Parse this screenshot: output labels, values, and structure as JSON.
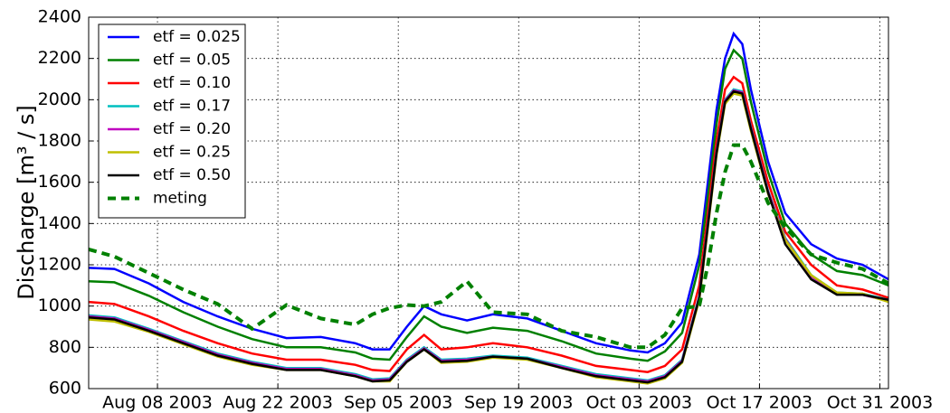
{
  "chart_data": {
    "type": "line",
    "y_label": "Discharge [m³ / s]",
    "x": [
      "2003-07-31",
      "2003-08-03",
      "2003-08-07",
      "2003-08-11",
      "2003-08-15",
      "2003-08-19",
      "2003-08-23",
      "2003-08-27",
      "2003-08-31",
      "2003-09-02",
      "2003-09-04",
      "2003-09-06",
      "2003-09-08",
      "2003-09-10",
      "2003-09-13",
      "2003-09-16",
      "2003-09-20",
      "2003-09-24",
      "2003-09-28",
      "2003-10-02",
      "2003-10-04",
      "2003-10-06",
      "2003-10-08",
      "2003-10-10",
      "2003-10-11",
      "2003-10-12",
      "2003-10-13",
      "2003-10-14",
      "2003-10-15",
      "2003-10-16",
      "2003-10-18",
      "2003-10-20",
      "2003-10-23",
      "2003-10-26",
      "2003-10-29",
      "2003-11-01"
    ],
    "series": [
      {
        "name": "etf = 0.025",
        "color": "#0000ff",
        "linestyle": "solid",
        "values": [
          1185,
          1180,
          1110,
          1020,
          950,
          890,
          845,
          850,
          820,
          790,
          790,
          900,
          1000,
          960,
          930,
          960,
          940,
          880,
          820,
          785,
          775,
          820,
          920,
          1250,
          1600,
          1950,
          2200,
          2320,
          2270,
          2050,
          1700,
          1450,
          1300,
          1230,
          1200,
          1130
        ]
      },
      {
        "name": "etf = 0.05",
        "color": "#008000",
        "linestyle": "solid",
        "values": [
          1120,
          1115,
          1050,
          970,
          900,
          840,
          800,
          800,
          775,
          745,
          740,
          850,
          950,
          900,
          870,
          895,
          880,
          830,
          770,
          745,
          735,
          780,
          870,
          1200,
          1530,
          1880,
          2150,
          2240,
          2200,
          1990,
          1650,
          1400,
          1250,
          1170,
          1150,
          1100
        ]
      },
      {
        "name": "etf = 0.10",
        "color": "#ff0000",
        "linestyle": "solid",
        "values": [
          1020,
          1010,
          950,
          880,
          820,
          770,
          740,
          740,
          715,
          690,
          685,
          790,
          860,
          790,
          800,
          820,
          800,
          760,
          710,
          690,
          680,
          710,
          790,
          1100,
          1450,
          1800,
          2050,
          2110,
          2080,
          1900,
          1600,
          1360,
          1200,
          1100,
          1080,
          1040
        ]
      },
      {
        "name": "etf = 0.17",
        "color": "#00bfbf",
        "linestyle": "solid",
        "values": [
          955,
          945,
          890,
          830,
          770,
          730,
          700,
          700,
          670,
          645,
          650,
          740,
          800,
          740,
          745,
          760,
          750,
          710,
          670,
          650,
          640,
          665,
          740,
          1050,
          1400,
          1750,
          2000,
          2050,
          2040,
          1870,
          1560,
          1330,
          1150,
          1065,
          1060,
          1030
        ]
      },
      {
        "name": "etf = 0.20",
        "color": "#bf00bf",
        "linestyle": "solid",
        "values": [
          950,
          940,
          885,
          825,
          765,
          725,
          695,
          695,
          665,
          640,
          645,
          735,
          795,
          735,
          740,
          755,
          745,
          705,
          665,
          645,
          635,
          660,
          735,
          1045,
          1395,
          1745,
          1995,
          2045,
          2035,
          1865,
          1555,
          1325,
          1145,
          1060,
          1055,
          1025
        ]
      },
      {
        "name": "etf = 0.25",
        "color": "#bfbf00",
        "linestyle": "solid",
        "values": [
          935,
          925,
          875,
          815,
          755,
          715,
          690,
          690,
          660,
          635,
          635,
          730,
          790,
          725,
          730,
          750,
          740,
          700,
          655,
          635,
          625,
          650,
          725,
          1030,
          1380,
          1730,
          1980,
          2030,
          2020,
          1850,
          1545,
          1320,
          1150,
          1065,
          1060,
          1020
        ]
      },
      {
        "name": "etf = 0.50",
        "color": "#000000",
        "linestyle": "solid",
        "values": [
          945,
          935,
          880,
          820,
          760,
          720,
          690,
          690,
          660,
          635,
          640,
          730,
          790,
          730,
          735,
          755,
          745,
          700,
          660,
          640,
          630,
          655,
          730,
          1040,
          1390,
          1740,
          1990,
          2040,
          2030,
          1860,
          1550,
          1300,
          1130,
          1055,
          1055,
          1030
        ]
      },
      {
        "name": "meting",
        "color": "#008000",
        "linestyle": "dashed",
        "values": [
          1275,
          1240,
          1160,
          1080,
          1010,
          890,
          1005,
          940,
          910,
          960,
          990,
          1005,
          1000,
          1020,
          1120,
          970,
          960,
          880,
          850,
          800,
          800,
          860,
          990,
          1000,
          1200,
          1450,
          1650,
          1780,
          1780,
          1700,
          1500,
          1380,
          1250,
          1210,
          1180,
          1110
        ]
      }
    ],
    "xlim": [
      "2003-07-31",
      "2003-11-01"
    ],
    "xticks": [
      {
        "value": "2003-08-08",
        "label": "Aug 08 2003"
      },
      {
        "value": "2003-08-22",
        "label": "Aug 22 2003"
      },
      {
        "value": "2003-09-05",
        "label": "Sep 05 2003"
      },
      {
        "value": "2003-09-19",
        "label": "Sep 19 2003"
      },
      {
        "value": "2003-10-03",
        "label": "Oct 03 2003"
      },
      {
        "value": "2003-10-17",
        "label": "Oct 17 2003"
      },
      {
        "value": "2003-10-31",
        "label": "Oct 31 2003"
      }
    ],
    "ylim": [
      600,
      2400
    ],
    "yticks": [
      600,
      800,
      1000,
      1200,
      1400,
      1600,
      1800,
      2000,
      2200,
      2400
    ],
    "grid": true,
    "legend_position": "upper-left"
  }
}
